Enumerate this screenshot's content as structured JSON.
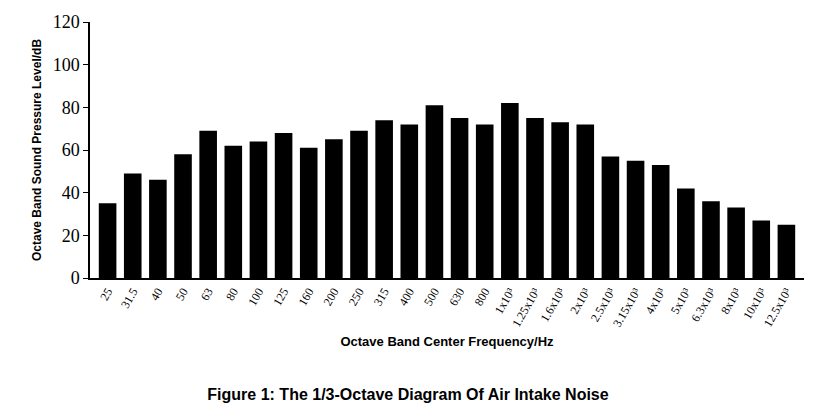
{
  "chart_data": {
    "type": "bar",
    "title": "Figure 1: The 1/3-Octave Diagram Of Air Intake Noise",
    "x_label": "Octave Band Center Frequency/Hz",
    "y_label": "Octave Band Sound Pressure Level/dB",
    "categories": [
      "25",
      "31.5",
      "40",
      "50",
      "63",
      "80",
      "100",
      "125",
      "160",
      "200",
      "250",
      "315",
      "400",
      "500",
      "630",
      "800",
      "1x10³",
      "1.25x10³",
      "1.6x10³",
      "2x10³",
      "2.5x10³",
      "3.15x10³",
      "4x10³",
      "5x10³",
      "6.3x10³",
      "8x10³",
      "10x10³",
      "12.5x10³"
    ],
    "values": [
      35,
      49,
      46,
      58,
      69,
      62,
      64,
      68,
      61,
      65,
      69,
      74,
      72,
      81,
      75,
      72,
      82,
      75,
      73,
      72,
      57,
      55,
      53,
      42,
      36,
      33,
      27,
      25
    ],
    "color": "#000000",
    "ylim": [
      0,
      120
    ],
    "yticks": [
      0,
      20,
      40,
      60,
      80,
      100,
      120
    ],
    "grid": false
  }
}
